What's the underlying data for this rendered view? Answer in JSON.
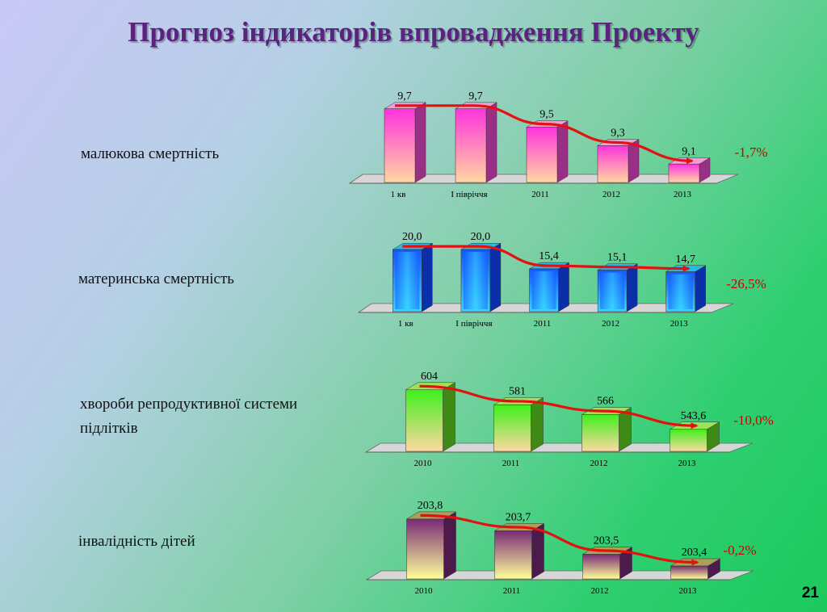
{
  "title": "Прогноз індикаторів впровадження Проекту",
  "page_number": "21",
  "chart_data": [
    {
      "type": "bar",
      "label": "малюкова смертність",
      "categories": [
        "1 кв",
        "І півріччя",
        "2011",
        "2012",
        "2013"
      ],
      "values": [
        9.7,
        9.7,
        9.5,
        9.3,
        9.1
      ],
      "value_labels": [
        "9,7",
        "9,7",
        "9,5",
        "9,3",
        "9,1"
      ],
      "change": "-1,7%",
      "ylim": [
        8.9,
        9.75
      ],
      "trend_line": true,
      "colors": {
        "top": "#ff33dd",
        "bottom": "#ffd8a0",
        "side": "#9b2f86",
        "cap": "#f0a0d6"
      }
    },
    {
      "type": "bar",
      "label": "материнська смертність",
      "categories": [
        "1 кв",
        "І півріччя",
        "2011",
        "2012",
        "2013"
      ],
      "values": [
        20.0,
        20.0,
        15.4,
        15.1,
        14.7
      ],
      "value_labels": [
        "20,0",
        "20,0",
        "15,4",
        "15,1",
        "14,7"
      ],
      "change": "-26,5%",
      "ylim": [
        5.2,
        20.2
      ],
      "trend_line": true,
      "colors": {
        "top": "#1557ff",
        "bottom": "#3ad6ff",
        "side": "#0a2fa8",
        "cap": "#28b8ea"
      }
    },
    {
      "type": "bar",
      "label": "хвороби репродуктивної системи підлітків",
      "categories": [
        "2010",
        "2011",
        "2012",
        "2013"
      ],
      "values": [
        604,
        581,
        566,
        543.6
      ],
      "value_labels": [
        "604",
        "581",
        "566",
        "543,6"
      ],
      "change": "-10,0%",
      "ylim": [
        510,
        605
      ],
      "trend_line": true,
      "colors": {
        "top": "#3ef01c",
        "bottom": "#ffd8a0",
        "side": "#3f8a16",
        "cap": "#9ee05a"
      }
    },
    {
      "type": "bar",
      "label": "інвалідність дітей",
      "categories": [
        "2010",
        "2011",
        "2012",
        "2013"
      ],
      "values": [
        203.8,
        203.7,
        203.5,
        203.4
      ],
      "value_labels": [
        "203,8",
        "203,7",
        "203,5",
        "203,4"
      ],
      "change": "-0,2%",
      "ylim": [
        203.29,
        203.82
      ],
      "trend_line": true,
      "colors": {
        "top": "#7a2a78",
        "bottom": "#ffff99",
        "side": "#4d1a4c",
        "cap": "#a9a05a"
      }
    }
  ]
}
